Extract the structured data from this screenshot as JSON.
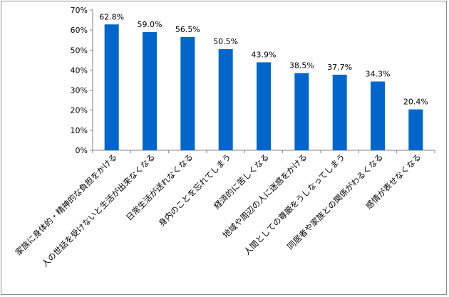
{
  "chart_data": {
    "type": "bar",
    "categories": [
      "家族に身体的・精神的な負担をかける",
      "人の世話を受けないと生活が出来なくなる",
      "日常生活が送れなくなる",
      "身内のことを忘れてしまう",
      "経済的に苦しくなる",
      "地域や周辺の人に迷惑をかける",
      "人間としての尊厳をうしなってしまう",
      "同居者や家族との関係がわるくなる",
      "感情が表せなくなる"
    ],
    "values": [
      62.8,
      59.0,
      56.5,
      50.5,
      43.9,
      38.5,
      37.7,
      34.3,
      20.4
    ],
    "data_labels": [
      "62.8%",
      "59.0%",
      "56.5%",
      "50.5%",
      "43.9%",
      "38.5%",
      "37.7%",
      "34.3%",
      "20.4%"
    ],
    "ylim": [
      0,
      70
    ],
    "yticks": [
      0,
      10,
      20,
      30,
      40,
      50,
      60,
      70
    ],
    "ytick_labels": [
      "0%",
      "10%",
      "20%",
      "30%",
      "40%",
      "50%",
      "60%",
      "70%"
    ],
    "bar_color": "#0066cc",
    "grid": false,
    "legend": "none"
  }
}
